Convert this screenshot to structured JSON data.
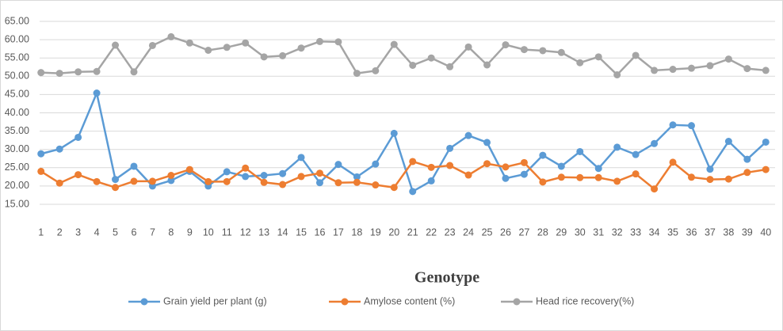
{
  "chart_data": {
    "type": "line",
    "x_label": "Genotype",
    "categories": [
      "1",
      "2",
      "3",
      "4",
      "5",
      "6",
      "7",
      "8",
      "9",
      "10",
      "11",
      "12",
      "13",
      "14",
      "15",
      "16",
      "17",
      "18",
      "19",
      "20",
      "21",
      "22",
      "23",
      "24",
      "25",
      "26",
      "27",
      "28",
      "29",
      "30",
      "31",
      "32",
      "33",
      "34",
      "35",
      "36",
      "37",
      "38",
      "39",
      "40"
    ],
    "series": [
      {
        "name": "Grain yield per plant (g)",
        "color": "#5b9bd5",
        "values": [
          28.8,
          30.1,
          33.3,
          45.4,
          21.8,
          25.4,
          20.0,
          21.5,
          24.0,
          20.0,
          23.9,
          22.6,
          22.9,
          23.4,
          27.8,
          20.9,
          25.9,
          22.5,
          26.0,
          34.4,
          18.5,
          21.4,
          30.3,
          33.8,
          31.9,
          22.1,
          23.2,
          28.4,
          25.4,
          29.4,
          24.8,
          30.6,
          28.6,
          31.6,
          36.7,
          36.5,
          24.6,
          32.2,
          27.3,
          32.0
        ]
      },
      {
        "name": "Amylose content (%)",
        "color": "#ed7d31",
        "values": [
          24.0,
          20.8,
          23.1,
          21.2,
          19.6,
          21.3,
          21.3,
          22.9,
          24.5,
          21.2,
          21.2,
          24.9,
          21.0,
          20.4,
          22.6,
          23.5,
          20.9,
          21.0,
          20.3,
          19.6,
          26.7,
          25.1,
          25.6,
          23.0,
          26.1,
          25.2,
          26.4,
          21.1,
          22.4,
          22.3,
          22.3,
          21.3,
          23.3,
          19.2,
          26.5,
          22.4,
          21.8,
          21.9,
          23.7,
          24.5
        ]
      },
      {
        "name": "Head rice recovery(%)",
        "color": "#a5a5a5",
        "values": [
          51.0,
          50.8,
          51.2,
          51.3,
          58.5,
          51.2,
          58.4,
          60.8,
          59.1,
          57.1,
          57.9,
          59.1,
          55.3,
          55.6,
          57.7,
          59.5,
          59.4,
          50.8,
          51.5,
          58.7,
          53.0,
          55.0,
          52.6,
          58.0,
          53.1,
          58.6,
          57.3,
          57.0,
          56.5,
          53.7,
          55.3,
          50.4,
          55.7,
          51.6,
          51.9,
          52.2,
          52.9,
          54.7,
          52.1,
          51.6
        ]
      }
    ],
    "ylim": [
      15,
      65
    ],
    "yticks": [
      {
        "value": 15,
        "label": "15.00"
      },
      {
        "value": 20,
        "label": "20.00"
      },
      {
        "value": 25,
        "label": "25.00"
      },
      {
        "value": 30,
        "label": "30.00"
      },
      {
        "value": 35,
        "label": "35.00"
      },
      {
        "value": 40,
        "label": "40.00"
      },
      {
        "value": 45,
        "label": "45.00"
      },
      {
        "value": 50,
        "label": "50.00"
      },
      {
        "value": 55,
        "label": "55.00"
      },
      {
        "value": 60,
        "label": "60.00"
      },
      {
        "value": 65,
        "label": "65.00"
      }
    ],
    "grid": true,
    "legend": "bottom"
  }
}
